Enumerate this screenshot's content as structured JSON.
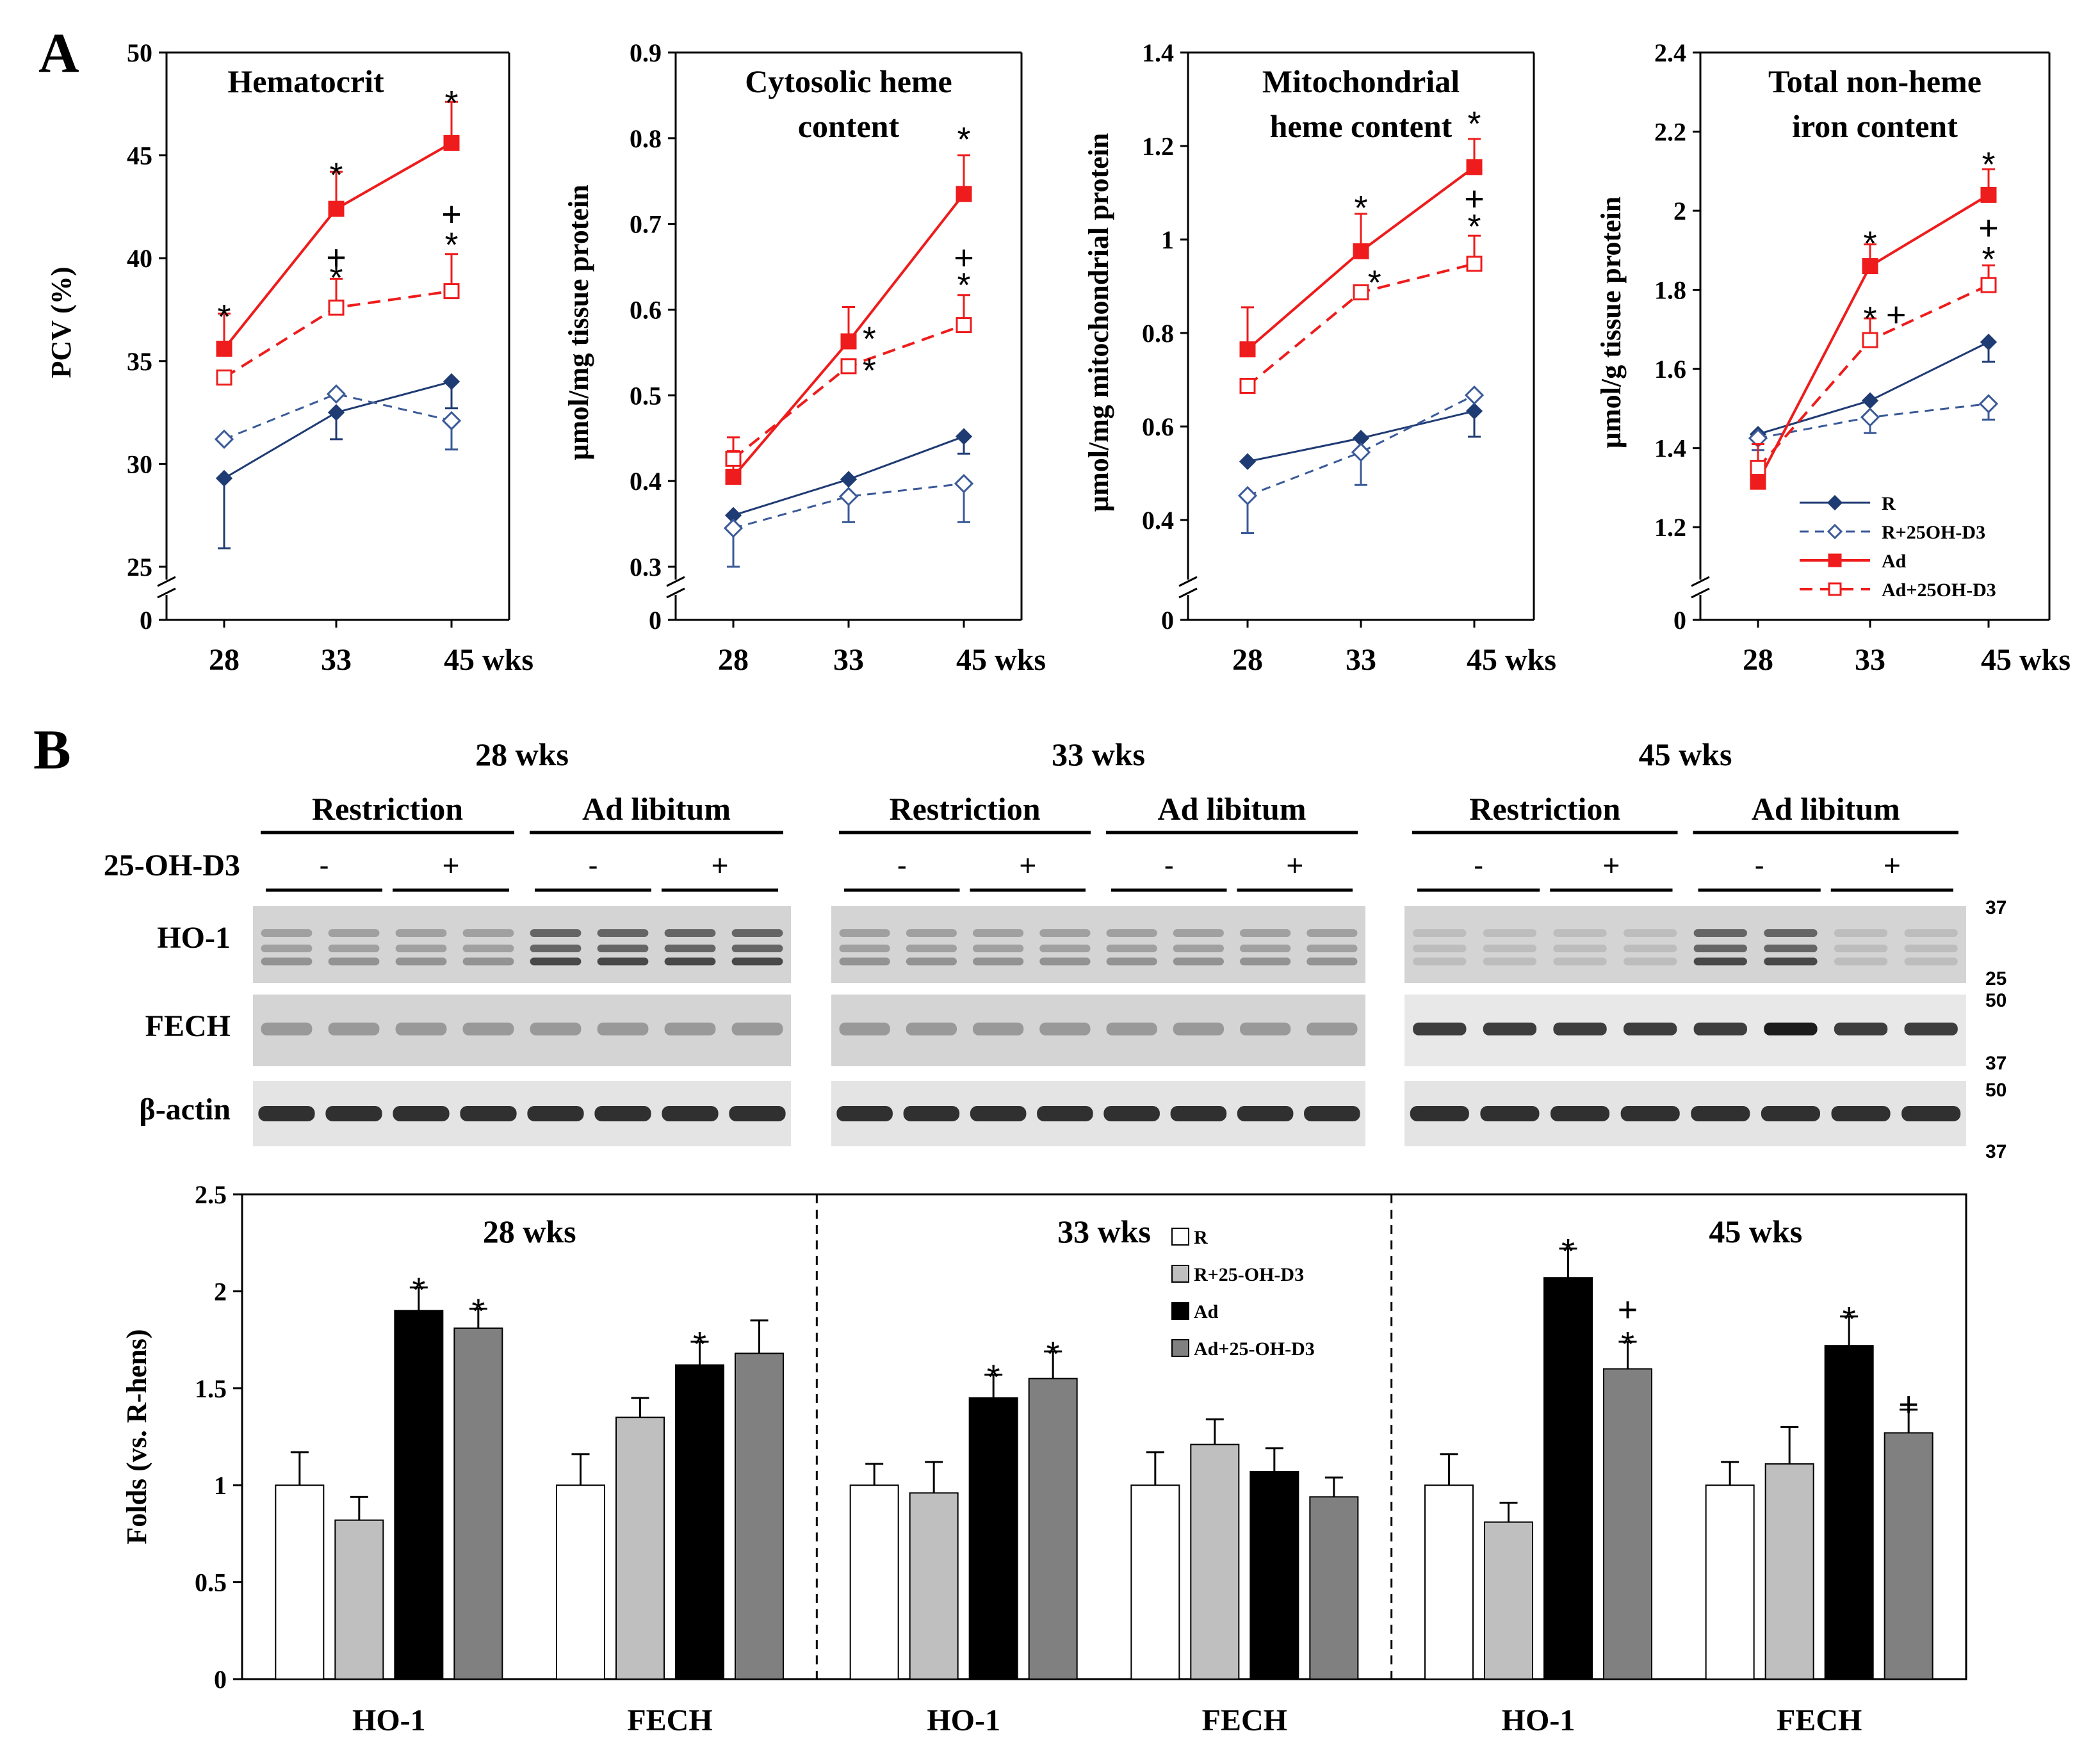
{
  "panel_labels": {
    "a": "A",
    "b": "B"
  },
  "chart_data": [
    {
      "type": "line",
      "title_lines": [
        "Hematocrit"
      ],
      "ylabel": "PCV (%)",
      "x": [
        "28",
        "33",
        "45 wks"
      ],
      "y_ticks": [
        "25",
        "30",
        "35",
        "40",
        "45",
        "50"
      ],
      "ylim": [
        25,
        50
      ],
      "zero_label": "0",
      "series": [
        {
          "name": "R",
          "values": [
            29.3,
            32.5,
            34.0
          ],
          "errors": [
            3.4,
            1.3,
            1.3
          ]
        },
        {
          "name": "R+25OH-D3",
          "values": [
            31.2,
            33.4,
            32.1
          ],
          "errors": [
            0,
            0,
            1.4
          ]
        },
        {
          "name": "Ad",
          "values": [
            35.6,
            42.4,
            45.6
          ],
          "errors": [
            1.7,
            1.8,
            2.0
          ]
        },
        {
          "name": "Ad+25OH-D3",
          "values": [
            34.2,
            37.6,
            38.4
          ],
          "errors": [
            0,
            1.4,
            1.8
          ]
        }
      ],
      "annotations": [
        {
          "text": "*",
          "x": 0,
          "y": 37.2
        },
        {
          "text": "*",
          "x": 1,
          "y": 44.1
        },
        {
          "text": "+",
          "x": 1,
          "y": 40.1
        },
        {
          "text": "*",
          "x": 1,
          "y": 39.1
        },
        {
          "text": "*",
          "x": 2,
          "y": 47.6
        },
        {
          "text": "+",
          "x": 2,
          "y": 42.2
        },
        {
          "text": "*",
          "x": 2,
          "y": 40.7
        }
      ]
    },
    {
      "type": "line",
      "title_lines": [
        "Cytosolic heme",
        "content"
      ],
      "ylabel": "µmol/mg tissue  protein",
      "x": [
        "28",
        "33",
        "45 wks"
      ],
      "y_ticks": [
        "0.3",
        "0.4",
        "0.5",
        "0.6",
        "0.7",
        "0.8",
        "0.9"
      ],
      "ylim": [
        0.3,
        0.9
      ],
      "zero_label": "0",
      "series": [
        {
          "name": "R",
          "values": [
            0.36,
            0.402,
            0.452
          ],
          "errors": [
            0,
            0,
            0.02
          ]
        },
        {
          "name": "R+25OH-D3",
          "values": [
            0.345,
            0.382,
            0.397
          ],
          "errors": [
            0.045,
            0.03,
            0.045
          ]
        },
        {
          "name": "Ad",
          "values": [
            0.405,
            0.563,
            0.735
          ],
          "errors": [
            0.03,
            0.04,
            0.045
          ]
        },
        {
          "name": "Ad+25OH-D3",
          "values": [
            0.426,
            0.534,
            0.582
          ],
          "errors": [
            0.025,
            0,
            0.035
          ]
        }
      ],
      "annotations": [
        {
          "text": "*",
          "x": 1.18,
          "y": 0.567
        },
        {
          "text": "*",
          "x": 1.18,
          "y": 0.53
        },
        {
          "text": "*",
          "x": 2,
          "y": 0.8
        },
        {
          "text": "+",
          "x": 2,
          "y": 0.662
        },
        {
          "text": "*",
          "x": 2,
          "y": 0.63
        }
      ]
    },
    {
      "type": "line",
      "title_lines": [
        "Mitochondrial",
        "heme content"
      ],
      "ylabel": "µmol/mg mitochondrial  protein",
      "x": [
        "28",
        "33",
        "45 wks"
      ],
      "y_ticks": [
        "0.4",
        "0.6",
        "0.8",
        "1",
        "1.2",
        "1.4"
      ],
      "ylim": [
        0.3,
        1.4
      ],
      "zero_label": "0",
      "series": [
        {
          "name": "R",
          "values": [
            0.525,
            0.575,
            0.633
          ],
          "errors": [
            0,
            0,
            0.055
          ]
        },
        {
          "name": "R+25OH-D3",
          "values": [
            0.452,
            0.545,
            0.667
          ],
          "errors": [
            0.08,
            0.07,
            0
          ]
        },
        {
          "name": "Ad",
          "values": [
            0.765,
            0.975,
            1.155
          ],
          "errors": [
            0.09,
            0.08,
            0.06
          ]
        },
        {
          "name": "Ad+25OH-D3",
          "values": [
            0.687,
            0.887,
            0.948
          ],
          "errors": [
            0,
            0,
            0.06
          ]
        }
      ],
      "annotations": [
        {
          "text": "*",
          "x": 1,
          "y": 1.07
        },
        {
          "text": "*",
          "x": 1.12,
          "y": 0.91
        },
        {
          "text": "*",
          "x": 2,
          "y": 1.25
        },
        {
          "text": "+",
          "x": 2,
          "y": 1.09
        },
        {
          "text": "*",
          "x": 2,
          "y": 1.03
        }
      ]
    },
    {
      "type": "line",
      "title_lines": [
        "Total non-heme",
        "iron content"
      ],
      "ylabel": "µmol/g tissue  protein",
      "x": [
        "28",
        "33",
        "45 wks"
      ],
      "y_ticks": [
        "1.2",
        "1.4",
        "1.6",
        "1.8",
        "2",
        "2.2",
        "2.4"
      ],
      "ylim": [
        1.1,
        2.4
      ],
      "zero_label": "0",
      "series": [
        {
          "name": "R",
          "values": [
            1.435,
            1.52,
            1.668
          ],
          "errors": [
            0,
            0,
            0.05
          ]
        },
        {
          "name": "R+25OH-D3",
          "values": [
            1.425,
            1.478,
            1.512
          ],
          "errors": [
            0.03,
            0.04,
            0.04
          ]
        },
        {
          "name": "Ad",
          "values": [
            1.315,
            1.86,
            2.04
          ],
          "errors": [
            0,
            0.055,
            0.065
          ]
        },
        {
          "name": "Ad+25OH-D3",
          "values": [
            1.35,
            1.673,
            1.812
          ],
          "errors": [
            0.06,
            0.055,
            0.05
          ]
        }
      ],
      "annotations": [
        {
          "text": "*",
          "x": 1,
          "y": 1.92
        },
        {
          "text": "*",
          "x": 1,
          "y": 1.73
        },
        {
          "text": "+",
          "x": 1.22,
          "y": 1.74
        },
        {
          "text": "*",
          "x": 2,
          "y": 2.12
        },
        {
          "text": "+",
          "x": 2,
          "y": 1.96
        },
        {
          "text": "*",
          "x": 2,
          "y": 1.88
        }
      ],
      "legend": {
        "placement": "bottom-right",
        "entries": [
          "R",
          "R+25OH-D3",
          "Ad",
          "Ad+25OH-D3"
        ]
      }
    },
    {
      "type": "bar",
      "ylabel": "Folds (vs. R-hens)",
      "ylim": [
        0,
        2.5
      ],
      "y_ticks": [
        "0",
        "0.5",
        "1",
        "1.5",
        "2",
        "2.5"
      ],
      "group_titles": [
        "28 wks",
        "33 wks",
        "45 wks"
      ],
      "categories": [
        "HO-1",
        "FECH",
        "HO-1",
        "FECH",
        "HO-1",
        "FECH"
      ],
      "series": [
        {
          "name": "R",
          "values": [
            1.0,
            1.0,
            1.0,
            1.0,
            1.0,
            1.0
          ],
          "errors": [
            0.17,
            0.16,
            0.11,
            0.17,
            0.16,
            0.12
          ]
        },
        {
          "name": "R+25-OH-D3",
          "values": [
            0.82,
            1.35,
            0.96,
            1.21,
            0.81,
            1.11
          ],
          "errors": [
            0.12,
            0.1,
            0.16,
            0.13,
            0.1,
            0.19
          ]
        },
        {
          "name": "Ad",
          "values": [
            1.9,
            1.62,
            1.45,
            1.07,
            2.07,
            1.72
          ],
          "errors": [
            0.12,
            0.12,
            0.12,
            0.12,
            0.15,
            0.15
          ]
        },
        {
          "name": "Ad+25-OH-D3",
          "values": [
            1.81,
            1.68,
            1.55,
            0.94,
            1.6,
            1.27
          ],
          "errors": [
            0.1,
            0.17,
            0.14,
            0.1,
            0.14,
            0.12
          ]
        }
      ],
      "annotations": [
        {
          "text": "*",
          "cat": 0,
          "series": 2
        },
        {
          "text": "*",
          "cat": 0,
          "series": 3
        },
        {
          "text": "*",
          "cat": 1,
          "series": 2
        },
        {
          "text": "*",
          "cat": 2,
          "series": 2
        },
        {
          "text": "*",
          "cat": 2,
          "series": 3
        },
        {
          "text": "*",
          "cat": 4,
          "series": 2
        },
        {
          "text": "*",
          "cat": 4,
          "series": 3
        },
        {
          "text": "+",
          "cat": 4,
          "series": 3
        },
        {
          "text": "*",
          "cat": 5,
          "series": 2
        },
        {
          "text": "+",
          "cat": 5,
          "series": 3
        }
      ],
      "legend": {
        "placement": "top-center",
        "entries": [
          "R",
          "R+25-OH-D3",
          "Ad",
          "Ad+25-OH-D3"
        ]
      }
    }
  ],
  "blot": {
    "timepoints": [
      "28 wks",
      "33 wks",
      "45 wks"
    ],
    "diet_groups": [
      "Restriction",
      "Ad libitum"
    ],
    "treatment_label": "25-OH-D3",
    "treatment_signs": [
      "-",
      "+"
    ],
    "rows": [
      "HO-1",
      "FECH",
      "β-actin"
    ],
    "mw_markers": [
      "37",
      "25",
      "50",
      "37",
      "50",
      "37"
    ]
  },
  "colors": {
    "navy": "#1f3b73",
    "navy_light": "#3a5a98",
    "red": "#ee1c1c",
    "bar_r": "#ffffff",
    "bar_rd": "#bfbfbf",
    "bar_ad": "#000000",
    "bar_add": "#808080"
  }
}
